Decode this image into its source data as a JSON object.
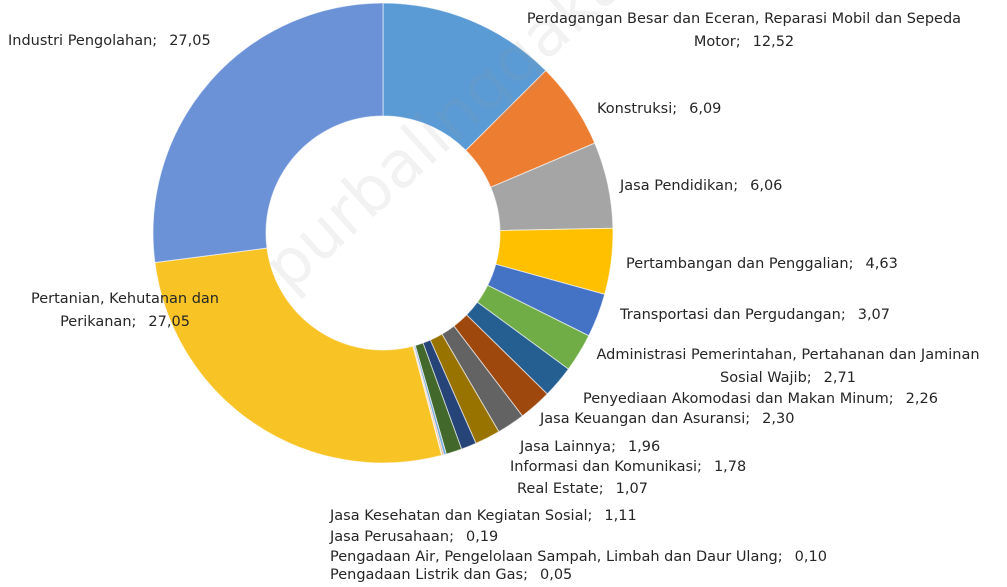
{
  "chart_data": {
    "type": "donut",
    "categories": [
      "Perdagangan Besar dan Eceran, Reparasi Mobil dan Sepeda Motor",
      "Konstruksi",
      "Jasa Pendidikan",
      "Pertambangan dan Penggalian",
      "Transportasi dan Pergudangan",
      "Administrasi Pemerintahan, Pertahanan dan Jaminan Sosial Wajib",
      "Penyediaan Akomodasi dan Makan Minum",
      "Jasa Keuangan dan Asuransi",
      "Jasa Lainnya",
      "Informasi dan Komunikasi",
      "Real Estate",
      "Jasa Kesehatan dan Kegiatan Sosial",
      "Jasa Perusahaan",
      "Pengadaan Air, Pengelolaan Sampah, Limbah dan Daur Ulang",
      "Pengadaan Listrik dan Gas",
      "Pertanian, Kehutanan dan Perikanan",
      "Industri Pengolahan"
    ],
    "values": [
      12.52,
      6.09,
      6.06,
      4.63,
      3.07,
      2.71,
      2.26,
      2.3,
      1.96,
      1.78,
      1.07,
      1.11,
      0.19,
      0.1,
      0.05,
      27.05,
      27.05
    ],
    "value_labels": [
      "12,52",
      "6,09",
      "6,06",
      "4,63",
      "3,07",
      "2,71",
      "2,26",
      "2,30",
      "1,96",
      "1,78",
      "1,07",
      "1,11",
      "0,19",
      "0,10",
      "0,05",
      "27,05",
      "27,05"
    ],
    "colors": [
      "#5b9bd5",
      "#ed7d31",
      "#a5a5a5",
      "#ffc000",
      "#4472c4",
      "#70ad47",
      "#255e91",
      "#9e480e",
      "#636363",
      "#997300",
      "#264478",
      "#43682b",
      "#7cafdd",
      "#f1975a",
      "#b7b7b7",
      "#f7c325",
      "#6b91d6"
    ],
    "label_separator": ";",
    "watermark": "purbalinggakab.bps.go.id"
  }
}
